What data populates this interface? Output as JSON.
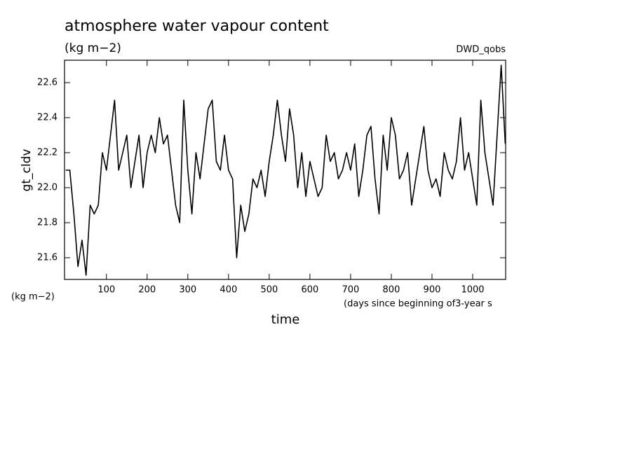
{
  "chart_data": {
    "type": "line",
    "title": "atmosphere water vapour content",
    "subtitle": "(kg m−2)",
    "source": "DWD_qobs",
    "y_label": "gt_cldv",
    "y_unit": "(kg m−2)",
    "x_label": "time",
    "x_unit": "(days since beginning of3-year s",
    "x": [
      0,
      10,
      20,
      30,
      40,
      50,
      60,
      70,
      80,
      90,
      100,
      110,
      120,
      130,
      140,
      150,
      160,
      170,
      180,
      190,
      200,
      210,
      220,
      230,
      240,
      250,
      260,
      270,
      280,
      290,
      300,
      310,
      320,
      330,
      340,
      350,
      360,
      370,
      380,
      390,
      400,
      410,
      420,
      430,
      440,
      450,
      460,
      470,
      480,
      490,
      500,
      510,
      520,
      530,
      540,
      550,
      560,
      570,
      580,
      590,
      600,
      610,
      620,
      630,
      640,
      650,
      660,
      670,
      680,
      690,
      700,
      710,
      720,
      730,
      740,
      750,
      760,
      770,
      780,
      790,
      800,
      810,
      820,
      830,
      840,
      850,
      860,
      870,
      880,
      890,
      900,
      910,
      920,
      930,
      940,
      950,
      960,
      970,
      980,
      990,
      1000,
      1010,
      1020,
      1030,
      1040,
      1050,
      1060,
      1070,
      1080
    ],
    "series": [
      {
        "name": "gt_cldv",
        "color": "#000000",
        "values": [
          22.1,
          22.1,
          21.85,
          21.55,
          21.7,
          21.5,
          21.9,
          21.85,
          21.9,
          22.2,
          22.1,
          22.3,
          22.5,
          22.1,
          22.2,
          22.3,
          22.0,
          22.15,
          22.3,
          22.0,
          22.2,
          22.3,
          22.2,
          22.4,
          22.25,
          22.3,
          22.1,
          21.9,
          21.8,
          22.5,
          22.1,
          21.85,
          22.2,
          22.05,
          22.25,
          22.45,
          22.5,
          22.15,
          22.1,
          22.3,
          22.1,
          22.05,
          21.6,
          21.9,
          21.75,
          21.85,
          22.05,
          22.0,
          22.1,
          21.95,
          22.15,
          22.3,
          22.5,
          22.3,
          22.15,
          22.45,
          22.3,
          22.0,
          22.2,
          21.95,
          22.15,
          22.05,
          21.95,
          22.0,
          22.3,
          22.15,
          22.2,
          22.05,
          22.1,
          22.2,
          22.1,
          22.25,
          21.95,
          22.1,
          22.3,
          22.35,
          22.05,
          21.85,
          22.3,
          22.1,
          22.4,
          22.3,
          22.05,
          22.1,
          22.2,
          21.9,
          22.05,
          22.2,
          22.35,
          22.1,
          22.0,
          22.05,
          21.95,
          22.2,
          22.1,
          22.05,
          22.15,
          22.4,
          22.1,
          22.2,
          22.05,
          21.9,
          22.5,
          22.2,
          22.05,
          21.9,
          22.3,
          22.7,
          22.25
        ]
      }
    ],
    "xlim": [
      -3,
      1081
    ],
    "ylim": [
      21.476,
      22.728
    ],
    "xticks": [
      100,
      200,
      300,
      400,
      500,
      600,
      700,
      800,
      900,
      1000
    ],
    "yticks": [
      21.6,
      21.8,
      {
        "value": 22,
        "label": "22.0"
      },
      22.2,
      22.4,
      22.6
    ],
    "grid": false
  }
}
